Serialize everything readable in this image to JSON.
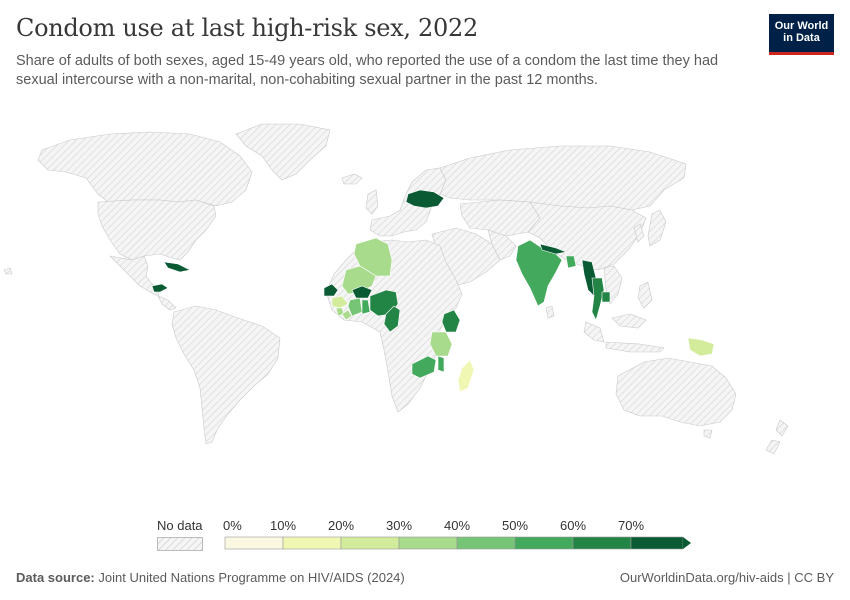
{
  "header": {
    "title": "Condom use at last high-risk sex, 2022",
    "subtitle": "Share of adults of both sexes, aged 15-49 years old, who reported the use of a condom the last time they had sexual intercourse with a non-marital, non-cohabiting sexual partner in the past 12 months."
  },
  "logo": {
    "line1": "Our World",
    "line2": "in Data"
  },
  "legend": {
    "no_data_label": "No data",
    "ticks": [
      "0%",
      "10%",
      "20%",
      "30%",
      "40%",
      "50%",
      "60%",
      "70%"
    ],
    "colors": [
      "#fbf8e2",
      "#f0f7b3",
      "#d2ec9c",
      "#a9db8d",
      "#76c475",
      "#43a95c",
      "#228445",
      "#0a5a33"
    ]
  },
  "colors": {
    "land_nodata": "#f2f2f2",
    "border": "#cfcfcf",
    "hatch": "#d4d4d4"
  },
  "countries_shown": [
    {
      "name": "Ukraine",
      "bin": 7
    },
    {
      "name": "Algeria",
      "bin": 3
    },
    {
      "name": "Mali",
      "bin": 3
    },
    {
      "name": "Senegal",
      "bin": 7
    },
    {
      "name": "Guinea",
      "bin": 2
    },
    {
      "name": "Sierra Leone",
      "bin": 3
    },
    {
      "name": "Liberia",
      "bin": 3
    },
    {
      "name": "Cote d'Ivoire",
      "bin": 4
    },
    {
      "name": "Ghana",
      "bin": 5
    },
    {
      "name": "Burkina Faso",
      "bin": 7
    },
    {
      "name": "Nigeria",
      "bin": 6
    },
    {
      "name": "Cameroon",
      "bin": 6
    },
    {
      "name": "Kenya",
      "bin": 6
    },
    {
      "name": "Tanzania",
      "bin": 3
    },
    {
      "name": "Malawi",
      "bin": 5
    },
    {
      "name": "Zambia",
      "bin": 5
    },
    {
      "name": "Madagascar",
      "bin": 1
    },
    {
      "name": "India",
      "bin": 5
    },
    {
      "name": "Nepal",
      "bin": 7
    },
    {
      "name": "Bangladesh",
      "bin": 5
    },
    {
      "name": "Myanmar",
      "bin": 7
    },
    {
      "name": "Thailand",
      "bin": 6
    },
    {
      "name": "Cambodia",
      "bin": 6
    },
    {
      "name": "Cuba",
      "bin": 7
    },
    {
      "name": "Honduras",
      "bin": 7
    },
    {
      "name": "Papua New Guinea",
      "bin": 2
    }
  ],
  "footer": {
    "source_label": "Data source:",
    "source_text": "Joint United Nations Programme on HIV/AIDS (2024)",
    "right_text": "OurWorldinData.org/hiv-aids | CC BY"
  }
}
